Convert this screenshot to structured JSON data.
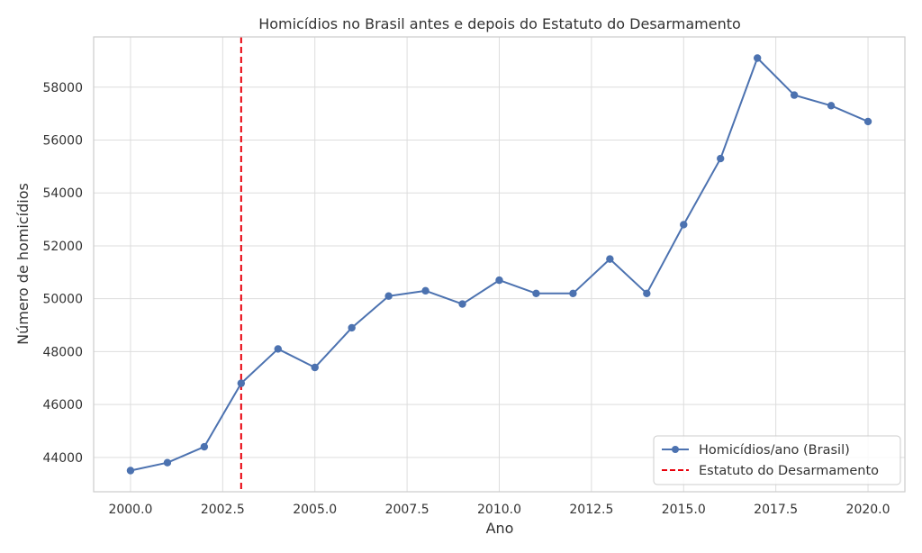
{
  "chart_data": {
    "type": "line",
    "title": "Homicídios no Brasil antes e depois do Estatuto do Desarmamento",
    "xlabel": "Ano",
    "ylabel": "Número de homicídios",
    "x": [
      2000,
      2001,
      2002,
      2003,
      2004,
      2005,
      2006,
      2007,
      2008,
      2009,
      2010,
      2011,
      2012,
      2013,
      2014,
      2015,
      2016,
      2017,
      2018,
      2019,
      2020
    ],
    "series": [
      {
        "name": "Homicídios/ano (Brasil)",
        "color": "#4c72b0",
        "values": [
          43500,
          43800,
          44400,
          46800,
          48100,
          47400,
          48900,
          50100,
          50300,
          49800,
          50700,
          50200,
          50200,
          51500,
          50200,
          52800,
          55300,
          59100,
          57700,
          57300,
          56700
        ]
      }
    ],
    "vline": {
      "x": 2003,
      "name": "Estatuto do Desarmamento",
      "color": "#e8000b",
      "style": "dashed"
    },
    "xticks": [
      2000,
      2002.5,
      2005,
      2007.5,
      2010,
      2012.5,
      2015,
      2017.5,
      2020
    ],
    "xtick_labels": [
      "2000.0",
      "2002.5",
      "2005.0",
      "2007.5",
      "2010.0",
      "2012.5",
      "2015.0",
      "2017.5",
      "2020.0"
    ],
    "yticks": [
      44000,
      46000,
      48000,
      50000,
      52000,
      54000,
      56000,
      58000
    ],
    "ytick_labels": [
      "44000",
      "46000",
      "48000",
      "50000",
      "52000",
      "54000",
      "56000",
      "58000"
    ],
    "xlim": [
      1999,
      2021
    ],
    "ylim": [
      42700,
      59900
    ],
    "grid": true,
    "legend_position": "bottom-right"
  }
}
